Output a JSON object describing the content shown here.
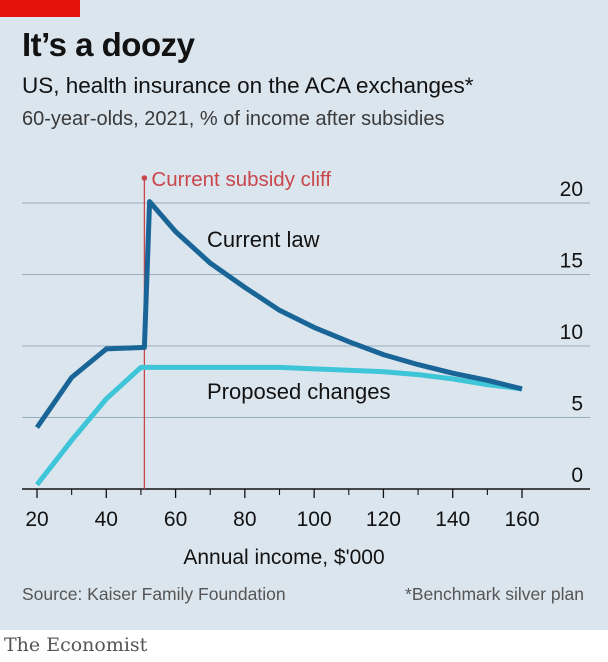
{
  "header": {
    "title": "It’s a doozy",
    "subtitle": "US, health insurance on the ACA exchanges*",
    "description": "60-year-olds, 2021, % of income after subsidies"
  },
  "footer": {
    "source": "Source: Kaiser Family Foundation",
    "footnote": "*Benchmark silver plan",
    "brand": "The Economist"
  },
  "colors": {
    "background": "#dbe5ee",
    "brand_red": "#e3120b",
    "current_law": "#1a6597",
    "proposed": "#3ec5d7",
    "cliff": "#c9474b",
    "grid": "#98aebc"
  },
  "chart_data": {
    "type": "line",
    "xlabel": "Annual income, $'000",
    "ylabel": "",
    "xlim": [
      18,
      168
    ],
    "ylim": [
      0,
      20
    ],
    "x_ticks": [
      20,
      40,
      60,
      80,
      100,
      120,
      140,
      160
    ],
    "y_ticks": [
      0,
      5,
      10,
      15,
      20
    ],
    "grid": "horizontal",
    "y_axis_side": "right",
    "series": [
      {
        "name": "Current law",
        "color": "#1a6597",
        "points": [
          [
            20,
            4.3
          ],
          [
            30,
            7.8
          ],
          [
            40,
            9.8
          ],
          [
            51,
            9.9
          ],
          [
            52.5,
            20.1
          ],
          [
            60,
            18.0
          ],
          [
            70,
            15.8
          ],
          [
            80,
            14.1
          ],
          [
            90,
            12.5
          ],
          [
            100,
            11.3
          ],
          [
            110,
            10.3
          ],
          [
            120,
            9.4
          ],
          [
            130,
            8.7
          ],
          [
            140,
            8.1
          ],
          [
            150,
            7.6
          ],
          [
            160,
            7.0
          ]
        ]
      },
      {
        "name": "Proposed changes",
        "color": "#3ec5d7",
        "points": [
          [
            20,
            0.3
          ],
          [
            30,
            3.4
          ],
          [
            40,
            6.3
          ],
          [
            50,
            8.5
          ],
          [
            60,
            8.5
          ],
          [
            70,
            8.5
          ],
          [
            80,
            8.5
          ],
          [
            90,
            8.5
          ],
          [
            100,
            8.4
          ],
          [
            110,
            8.3
          ],
          [
            120,
            8.2
          ],
          [
            130,
            8.0
          ],
          [
            140,
            7.7
          ],
          [
            150,
            7.3
          ],
          [
            160,
            7.0
          ]
        ]
      }
    ],
    "annotations": [
      {
        "text": "Current subsidy cliff",
        "x": 51,
        "kind": "vertical-line",
        "color": "#c9474b"
      }
    ]
  }
}
